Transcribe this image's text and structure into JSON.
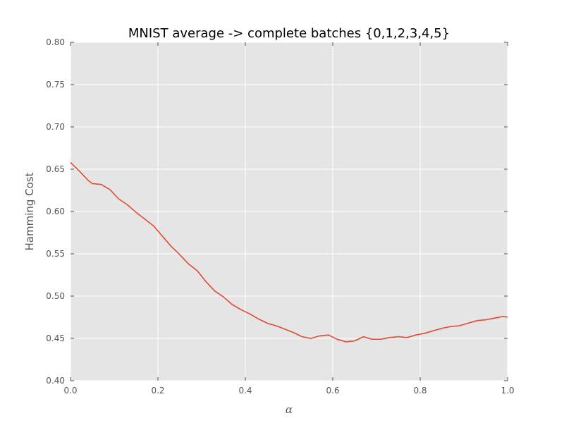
{
  "chart_data": {
    "type": "line",
    "title": "MNIST average -> complete batches {0,1,2,3,4,5}",
    "xlabel": "α",
    "ylabel": "Hamming Cost",
    "xlim": [
      0.0,
      1.0
    ],
    "ylim": [
      0.4,
      0.8
    ],
    "x_ticks": [
      "0.0",
      "0.2",
      "0.4",
      "0.6",
      "0.8",
      "1.0"
    ],
    "y_ticks": [
      "0.40",
      "0.45",
      "0.50",
      "0.55",
      "0.60",
      "0.65",
      "0.70",
      "0.75",
      "0.80"
    ],
    "grid": true,
    "line_color": "#e24a33",
    "background_color": "#e5e5e5",
    "series": [
      {
        "x": [
          0.0,
          0.02,
          0.04,
          0.05,
          0.07,
          0.09,
          0.11,
          0.13,
          0.15,
          0.17,
          0.19,
          0.21,
          0.23,
          0.25,
          0.27,
          0.29,
          0.31,
          0.33,
          0.35,
          0.37,
          0.39,
          0.41,
          0.43,
          0.45,
          0.47,
          0.49,
          0.51,
          0.53,
          0.55,
          0.57,
          0.59,
          0.61,
          0.63,
          0.65,
          0.67,
          0.69,
          0.71,
          0.73,
          0.75,
          0.77,
          0.79,
          0.81,
          0.83,
          0.85,
          0.87,
          0.89,
          0.91,
          0.93,
          0.95,
          0.97,
          0.99,
          1.0
        ],
        "y": [
          0.658,
          0.648,
          0.637,
          0.633,
          0.632,
          0.626,
          0.615,
          0.608,
          0.599,
          0.591,
          0.583,
          0.571,
          0.559,
          0.549,
          0.538,
          0.53,
          0.517,
          0.506,
          0.499,
          0.49,
          0.484,
          0.479,
          0.473,
          0.468,
          0.465,
          0.461,
          0.457,
          0.452,
          0.45,
          0.453,
          0.454,
          0.449,
          0.446,
          0.447,
          0.452,
          0.449,
          0.449,
          0.451,
          0.452,
          0.451,
          0.454,
          0.456,
          0.459,
          0.462,
          0.464,
          0.465,
          0.468,
          0.471,
          0.472,
          0.474,
          0.476,
          0.475
        ]
      }
    ]
  }
}
